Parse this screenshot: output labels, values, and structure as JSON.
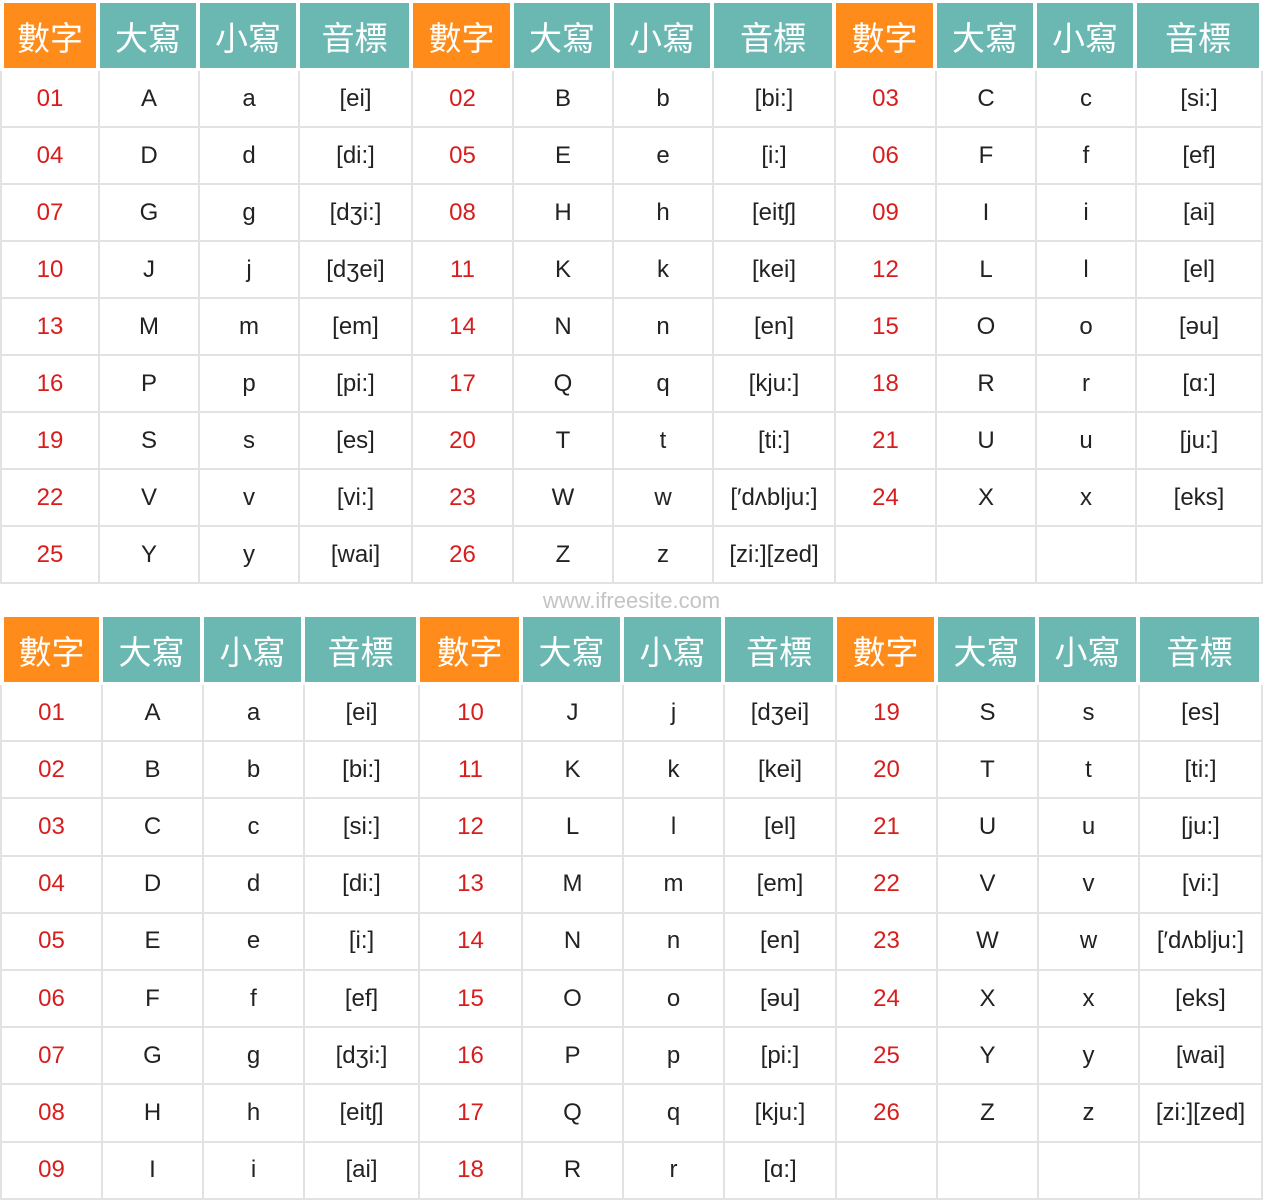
{
  "colors": {
    "number_header": "#ff8c1a",
    "other_header": "#6bb8b3",
    "number_text": "#d81d1d",
    "grid": "#e2e2e2"
  },
  "header_labels": [
    "數字",
    "大寫",
    "小寫",
    "音標"
  ],
  "watermark": "www.ifreesite.com",
  "table_row_major": {
    "rows": [
      [
        [
          "01",
          "A",
          "a",
          "[ei]"
        ],
        [
          "02",
          "B",
          "b",
          "[bi:]"
        ],
        [
          "03",
          "C",
          "c",
          "[si:]"
        ]
      ],
      [
        [
          "04",
          "D",
          "d",
          "[di:]"
        ],
        [
          "05",
          "E",
          "e",
          "[i:]"
        ],
        [
          "06",
          "F",
          "f",
          "[ef]"
        ]
      ],
      [
        [
          "07",
          "G",
          "g",
          "[dʒi:]"
        ],
        [
          "08",
          "H",
          "h",
          "[eitʃ]"
        ],
        [
          "09",
          "I",
          "i",
          "[ai]"
        ]
      ],
      [
        [
          "10",
          "J",
          "j",
          "[dʒei]"
        ],
        [
          "11",
          "K",
          "k",
          "[kei]"
        ],
        [
          "12",
          "L",
          "l",
          "[el]"
        ]
      ],
      [
        [
          "13",
          "M",
          "m",
          "[em]"
        ],
        [
          "14",
          "N",
          "n",
          "[en]"
        ],
        [
          "15",
          "O",
          "o",
          "[əu]"
        ]
      ],
      [
        [
          "16",
          "P",
          "p",
          "[pi:]"
        ],
        [
          "17",
          "Q",
          "q",
          "[kju:]"
        ],
        [
          "18",
          "R",
          "r",
          "[ɑ:]"
        ]
      ],
      [
        [
          "19",
          "S",
          "s",
          "[es]"
        ],
        [
          "20",
          "T",
          "t",
          "[ti:]"
        ],
        [
          "21",
          "U",
          "u",
          "[ju:]"
        ]
      ],
      [
        [
          "22",
          "V",
          "v",
          "[vi:]"
        ],
        [
          "23",
          "W",
          "w",
          "[′dʌblju:]"
        ],
        [
          "24",
          "X",
          "x",
          "[eks]"
        ]
      ],
      [
        [
          "25",
          "Y",
          "y",
          "[wai]"
        ],
        [
          "26",
          "Z",
          "z",
          "[zi:][zed]"
        ],
        null
      ]
    ]
  },
  "table_column_major": {
    "rows": [
      [
        [
          "01",
          "A",
          "a",
          "[ei]"
        ],
        [
          "10",
          "J",
          "j",
          "[dʒei]"
        ],
        [
          "19",
          "S",
          "s",
          "[es]"
        ]
      ],
      [
        [
          "02",
          "B",
          "b",
          "[bi:]"
        ],
        [
          "11",
          "K",
          "k",
          "[kei]"
        ],
        [
          "20",
          "T",
          "t",
          "[ti:]"
        ]
      ],
      [
        [
          "03",
          "C",
          "c",
          "[si:]"
        ],
        [
          "12",
          "L",
          "l",
          "[el]"
        ],
        [
          "21",
          "U",
          "u",
          "[ju:]"
        ]
      ],
      [
        [
          "04",
          "D",
          "d",
          "[di:]"
        ],
        [
          "13",
          "M",
          "m",
          "[em]"
        ],
        [
          "22",
          "V",
          "v",
          "[vi:]"
        ]
      ],
      [
        [
          "05",
          "E",
          "e",
          "[i:]"
        ],
        [
          "14",
          "N",
          "n",
          "[en]"
        ],
        [
          "23",
          "W",
          "w",
          "[′dʌblju:]"
        ]
      ],
      [
        [
          "06",
          "F",
          "f",
          "[ef]"
        ],
        [
          "15",
          "O",
          "o",
          "[əu]"
        ],
        [
          "24",
          "X",
          "x",
          "[eks]"
        ]
      ],
      [
        [
          "07",
          "G",
          "g",
          "[dʒi:]"
        ],
        [
          "16",
          "P",
          "p",
          "[pi:]"
        ],
        [
          "25",
          "Y",
          "y",
          "[wai]"
        ]
      ],
      [
        [
          "08",
          "H",
          "h",
          "[eitʃ]"
        ],
        [
          "17",
          "Q",
          "q",
          "[kju:]"
        ],
        [
          "26",
          "Z",
          "z",
          "[zi:][zed]"
        ]
      ],
      [
        [
          "09",
          "I",
          "i",
          "[ai]"
        ],
        [
          "18",
          "R",
          "r",
          "[ɑ:]"
        ],
        null
      ]
    ]
  }
}
